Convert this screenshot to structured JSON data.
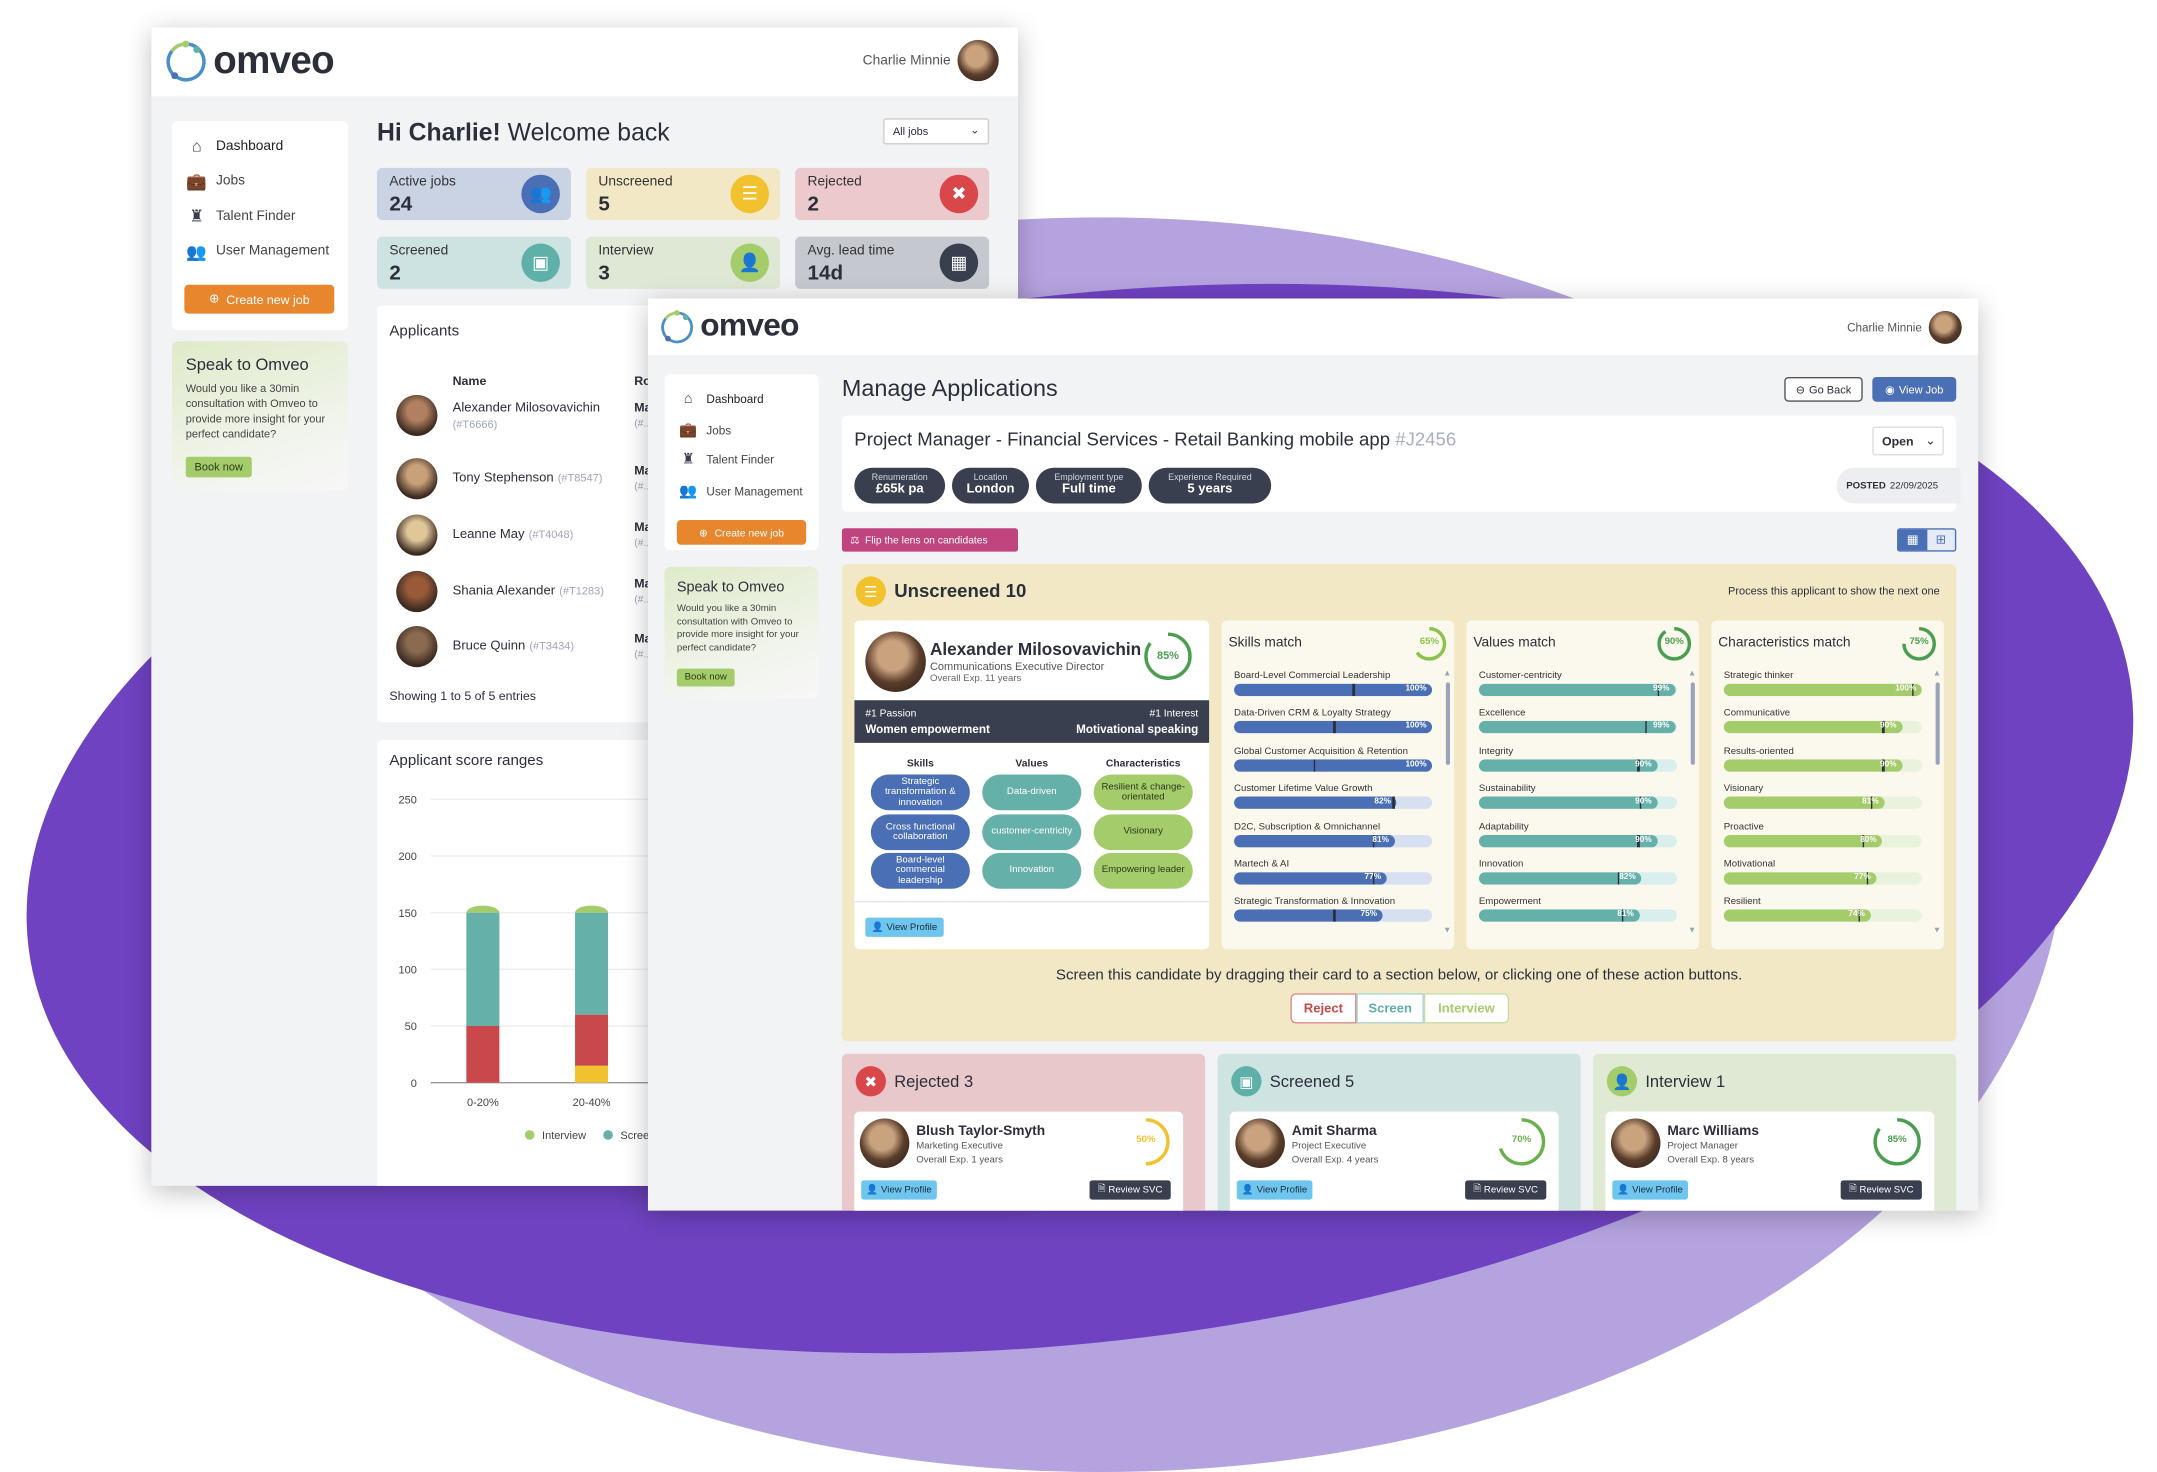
{
  "colors": {
    "brand_purple": "#6f42c1",
    "orange": "#e8862e",
    "blue": "#4a6fb5",
    "teal": "#66b0aa",
    "green": "#a5cc6b",
    "yellow": "#f2c12e",
    "red": "#d9474a",
    "dark": "#3a3f4f",
    "pink": "#c0457f"
  },
  "dashboard": {
    "logo": "omveo",
    "user_name": "Charlie Minnie",
    "sidebar": {
      "items": [
        {
          "label": "Dashboard",
          "icon": "home-icon"
        },
        {
          "label": "Jobs",
          "icon": "briefcase-icon"
        },
        {
          "label": "Talent Finder",
          "icon": "user-tie-icon"
        },
        {
          "label": "User Management",
          "icon": "users-icon"
        }
      ],
      "create_label": "Create new job"
    },
    "speak": {
      "title": "Speak to Omveo",
      "text": "Would you like a 30min consultation with Omveo to provide more insight for your perfect candidate?",
      "button": "Book now"
    },
    "greeting_bold": "Hi Charlie!",
    "greeting_rest": " Welcome back",
    "filter": "All jobs",
    "stats": [
      {
        "label": "Active jobs",
        "value": "24",
        "icon": "users-icon",
        "bg": "#c9d3e4",
        "icon_bg": "#4a6fb5"
      },
      {
        "label": "Unscreened",
        "value": "5",
        "icon": "checklist-icon",
        "bg": "#f3e8c6",
        "icon_bg": "#f2c12e"
      },
      {
        "label": "Rejected",
        "value": "2",
        "icon": "user-x-icon",
        "bg": "#ecc9cc",
        "icon_bg": "#d9474a"
      },
      {
        "label": "Screened",
        "value": "2",
        "icon": "id-card-icon",
        "bg": "#cde3e1",
        "icon_bg": "#5fb0a8"
      },
      {
        "label": "Interview",
        "value": "3",
        "icon": "user-icon",
        "bg": "#dfe8d4",
        "icon_bg": "#a5cc6b"
      },
      {
        "label": "Avg. lead time",
        "value": "14d",
        "icon": "calendar-icon",
        "bg": "#c5c8cf",
        "icon_bg": "#3a3f4f"
      }
    ],
    "applicants": {
      "title": "Applicants",
      "col_name": "Name",
      "col_role": "Ro",
      "rows": [
        {
          "name": "Alexander Milosovavichin",
          "id": "(#T6666)",
          "role": "Ma",
          "role_id": "(#..."
        },
        {
          "name": "Tony Stephenson",
          "id": "(#T8547)",
          "role": "Ma",
          "role_id": "(#..."
        },
        {
          "name": "Leanne May",
          "id": "(#T4048)",
          "role": "Ma",
          "role_id": "(#..."
        },
        {
          "name": "Shania Alexander",
          "id": "(#T1283)",
          "role": "Ma",
          "role_id": "(#..."
        },
        {
          "name": "Bruce Quinn",
          "id": "(#T3434)",
          "role": "Ma",
          "role_id": "(#..."
        }
      ],
      "footer": "Showing 1 to 5 of 5 entries"
    }
  },
  "chart_data": {
    "type": "bar",
    "stacked": true,
    "title": "Applicant score ranges",
    "categories": [
      "0-20%",
      "20-40%"
    ],
    "ylim": [
      0,
      250
    ],
    "yticks": [
      0,
      50,
      100,
      150,
      200,
      250
    ],
    "grid": true,
    "legend": "bottom",
    "series": [
      {
        "values": [
          0,
          15
        ],
        "color": "#f2c12e"
      },
      {
        "values": [
          50,
          45
        ],
        "color": "#c9484b"
      },
      {
        "name": "Screened",
        "values": [
          100,
          90
        ],
        "color": "#66b0aa"
      },
      {
        "name": "Interview",
        "values": [
          5,
          5
        ],
        "color": "#a5cc6b"
      }
    ]
  },
  "manage": {
    "logo": "omveo",
    "user_name": "Charlie Minnie",
    "sidebar": {
      "items": [
        {
          "label": "Dashboard"
        },
        {
          "label": "Jobs"
        },
        {
          "label": "Talent Finder"
        },
        {
          "label": "User Management"
        }
      ],
      "create_label": "Create new job"
    },
    "speak": {
      "title": "Speak to Omveo",
      "text": "Would you like a 30min consultation with Omveo to provide more insight for your perfect candidate?",
      "button": "Book now"
    },
    "title": "Manage Applications",
    "go_back": "Go Back",
    "view_job": "View Job",
    "job": {
      "title": "Project Manager - Financial Services - Retail Banking mobile app",
      "id": "#J2456",
      "status": "Open",
      "pills": [
        {
          "label": "Renumeration",
          "value": "£65k pa"
        },
        {
          "label": "Location",
          "value": "London"
        },
        {
          "label": "Employment type",
          "value": "Full time"
        },
        {
          "label": "Experience Required",
          "value": "5 years"
        }
      ],
      "posted_label": "POSTED",
      "posted_date": "22/09/2025"
    },
    "flip_label": "Flip the lens on candidates",
    "unscreened": {
      "title": "Unscreened 10",
      "hint": "Process this applicant to show the next one",
      "candidate": {
        "name": "Alexander Milosovavichin",
        "role": "Communications Executive Director",
        "exp": "Overall Exp. 11 years",
        "score": 85,
        "score_label": "85%",
        "passion_label": "#1 Passion",
        "passion": "Women empowerment",
        "interest_label": "#1 Interest",
        "interest": "Motivational speaking",
        "columns": [
          {
            "title": "Skills",
            "tags": [
              "Strategic transformation & innovation",
              "Cross functional collaboration",
              "Board-level commercial leadership"
            ]
          },
          {
            "title": "Values",
            "tags": [
              "Data-driven",
              "customer-centricity",
              "Innovation"
            ]
          },
          {
            "title": "Characteristics",
            "tags": [
              "Resilient & change-orientated",
              "Visionary",
              "Empowering leader"
            ]
          }
        ],
        "view_profile": "View Profile"
      },
      "matches": [
        {
          "title": "Skills match",
          "score": 65,
          "score_label": "65%",
          "fill": "#4a6fb5",
          "track": "#d6e0f0",
          "ring": "#8bc34a",
          "items": [
            {
              "label": "Board-Level Commercial Leadership",
              "value": 100,
              "target": 60
            },
            {
              "label": "Data-Driven CRM & Loyalty Strategy",
              "value": 100,
              "target": 50
            },
            {
              "label": "Global Customer Acquisition & Retention",
              "value": 100,
              "target": 40
            },
            {
              "label": "Customer Lifetime Value Growth",
              "value": 82,
              "target": 80
            },
            {
              "label": "D2C, Subscription & Omnichannel",
              "value": 81,
              "target": 70
            },
            {
              "label": "Martech & AI",
              "value": 77,
              "target": 70
            },
            {
              "label": "Strategic Transformation & Innovation",
              "value": 75,
              "target": 50
            }
          ]
        },
        {
          "title": "Values match",
          "score": 90,
          "score_label": "90%",
          "fill": "#66b0aa",
          "track": "#d9efed",
          "ring": "#4a9e4f",
          "items": [
            {
              "label": "Customer-centricity",
              "value": 99,
              "target": 90
            },
            {
              "label": "Excellence",
              "value": 99,
              "target": 84
            },
            {
              "label": "Integrity",
              "value": 90,
              "target": 80
            },
            {
              "label": "Sustainability",
              "value": 90,
              "target": 81
            },
            {
              "label": "Adaptability",
              "value": 90,
              "target": 80
            },
            {
              "label": "Innovation",
              "value": 82,
              "target": 70
            },
            {
              "label": "Empowerment",
              "value": 81,
              "target": 72
            }
          ]
        },
        {
          "title": "Characteristics match",
          "score": 75,
          "score_label": "75%",
          "fill": "#a5cc6b",
          "track": "#e9f2dc",
          "ring": "#4a9e4f",
          "items": [
            {
              "label": "Strategic thinker",
              "value": 100,
              "target": 95
            },
            {
              "label": "Communicative",
              "value": 90,
              "target": 80
            },
            {
              "label": "Results-oriented",
              "value": 90,
              "target": 80
            },
            {
              "label": "Visionary",
              "value": 81,
              "target": 74
            },
            {
              "label": "Proactive",
              "value": 80,
              "target": 70
            },
            {
              "label": "Motivational",
              "value": 77,
              "target": 72
            },
            {
              "label": "Resilient",
              "value": 74,
              "target": 68
            }
          ]
        }
      ],
      "instruction": "Screen this candidate by dragging their card to a section below, or clicking one of these action buttons.",
      "actions": {
        "reject": "Reject",
        "screen": "Screen",
        "interview": "Interview"
      }
    },
    "lanes": [
      {
        "title": "Rejected 3",
        "bg": "#e8c8ca",
        "icon_bg": "#d9474a",
        "icon": "user-x-icon",
        "card": {
          "name": "Blush Taylor-Smyth",
          "role": "Marketing Executive",
          "exp": "Overall Exp. 1 years",
          "score": 50,
          "score_label": "50%",
          "ring": "#f2c12e"
        }
      },
      {
        "title": "Screened 5",
        "bg": "#cfe3e1",
        "icon_bg": "#5fb0a8",
        "icon": "id-card-icon",
        "card": {
          "name": "Amit Sharma",
          "role": "Project Executive",
          "exp": "Overall Exp. 4 years",
          "score": 70,
          "score_label": "70%",
          "ring": "#6ab04c"
        }
      },
      {
        "title": "Interview 1",
        "bg": "#e0e9d4",
        "icon_bg": "#a5cc6b",
        "icon": "user-icon",
        "card": {
          "name": "Marc Williams",
          "role": "Project Manager",
          "exp": "Overall Exp. 8 years",
          "score": 85,
          "score_label": "85%",
          "ring": "#4a9e4f"
        }
      }
    ],
    "view_profile": "View Profile",
    "review_svc": "Review SVC"
  }
}
